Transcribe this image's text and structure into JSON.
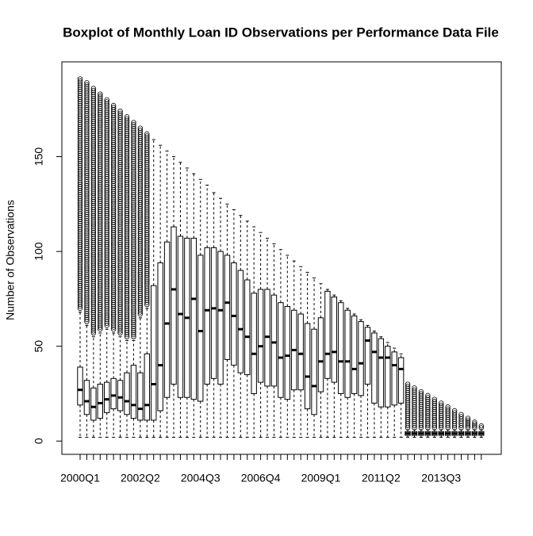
{
  "chart_data": {
    "type": "boxplot",
    "title": "Boxplot of Monthly Loan ID Observations per Performance Data File",
    "y_label": "Number of Observations",
    "categories": [
      "2000Q1",
      null,
      null,
      null,
      null,
      null,
      null,
      null,
      null,
      "2002Q2",
      null,
      null,
      null,
      null,
      null,
      null,
      null,
      null,
      "2004Q3",
      null,
      null,
      null,
      null,
      null,
      null,
      null,
      null,
      "2006Q4",
      null,
      null,
      null,
      null,
      null,
      null,
      null,
      null,
      "2009Q1",
      null,
      null,
      null,
      null,
      null,
      null,
      null,
      null,
      "2011Q2",
      null,
      null,
      null,
      null,
      null,
      null,
      null,
      null,
      "2013Q3",
      null,
      null,
      null,
      null,
      null,
      null
    ],
    "whisker_low": [
      2,
      2,
      2,
      2,
      2,
      2,
      2,
      2,
      2,
      2,
      2,
      2,
      2,
      2,
      2,
      2,
      2,
      2,
      2,
      2,
      2,
      2,
      2,
      2,
      2,
      2,
      2,
      2,
      2,
      2,
      2,
      2,
      2,
      2,
      2,
      2,
      2,
      2,
      2,
      2,
      2,
      2,
      2,
      2,
      2,
      2,
      2,
      2,
      2,
      2,
      2,
      2,
      2,
      2,
      2,
      2,
      2,
      2,
      2,
      2,
      2
    ],
    "q1": [
      19,
      14,
      11,
      12,
      15,
      17,
      16,
      14,
      12,
      11,
      11,
      11,
      16,
      23,
      30,
      23,
      23,
      22,
      21,
      30,
      33,
      30,
      43,
      40,
      36,
      35,
      25,
      31,
      29,
      29,
      23,
      22,
      27,
      27,
      17,
      14,
      26,
      33,
      31,
      25,
      23,
      25,
      24,
      30,
      20,
      18,
      18,
      19,
      20,
      3,
      3,
      3,
      3,
      3,
      3,
      3,
      3,
      3,
      3,
      3,
      3
    ],
    "median": [
      27,
      21,
      18,
      20,
      22,
      24,
      23,
      21,
      19,
      17,
      19,
      30,
      40,
      62,
      80,
      67,
      65,
      75,
      58,
      69,
      70,
      69,
      73,
      66,
      59,
      55,
      46,
      50,
      55,
      52,
      44,
      45,
      48,
      46,
      34,
      29,
      42,
      46,
      47,
      42,
      42,
      38,
      41,
      53,
      47,
      44,
      44,
      40,
      38,
      4,
      4,
      4,
      4,
      4,
      4,
      4,
      4,
      4,
      4,
      4,
      4
    ],
    "q3": [
      39,
      32,
      28,
      30,
      31,
      33,
      32,
      36,
      40,
      36,
      46,
      82,
      94,
      105,
      113,
      108,
      107,
      107,
      98,
      102,
      102,
      100,
      98,
      94,
      90,
      85,
      78,
      80,
      80,
      77,
      73,
      71,
      69,
      67,
      62,
      59,
      65,
      79,
      76,
      73,
      69,
      66,
      63,
      60,
      57,
      54,
      50,
      47,
      44,
      5,
      5,
      5,
      5,
      5,
      5,
      5,
      5,
      5,
      5,
      5,
      5
    ],
    "whisker_high": [
      68,
      61,
      55,
      57,
      59,
      57,
      55,
      53,
      53,
      65,
      70,
      159,
      156,
      153,
      150,
      147,
      144,
      141,
      138,
      135,
      131,
      128,
      125,
      122,
      119,
      116,
      113,
      110,
      107,
      104,
      101,
      98,
      95,
      92,
      89,
      86,
      83,
      80,
      77,
      74,
      70,
      67,
      64,
      61,
      58,
      55,
      52,
      49,
      46,
      6,
      6,
      6,
      6,
      6,
      6,
      6,
      6,
      6,
      6,
      6,
      6
    ],
    "outlier_min": [
      70,
      63,
      57,
      59,
      61,
      59,
      57,
      55,
      55,
      67,
      72,
      null,
      null,
      null,
      null,
      null,
      null,
      null,
      null,
      null,
      null,
      null,
      null,
      null,
      null,
      null,
      null,
      null,
      null,
      null,
      null,
      null,
      null,
      null,
      null,
      null,
      null,
      null,
      null,
      null,
      null,
      null,
      null,
      null,
      null,
      null,
      null,
      null,
      null,
      7,
      7,
      7,
      7,
      7,
      7,
      7,
      7,
      7,
      7,
      7,
      7
    ],
    "outlier_max": [
      191,
      189,
      186,
      183,
      180,
      177,
      174,
      171,
      168,
      165,
      162,
      null,
      null,
      null,
      null,
      null,
      null,
      null,
      null,
      null,
      null,
      null,
      null,
      null,
      null,
      null,
      null,
      null,
      null,
      null,
      null,
      null,
      null,
      null,
      null,
      null,
      null,
      null,
      null,
      null,
      null,
      null,
      null,
      null,
      null,
      null,
      null,
      null,
      null,
      30,
      28,
      26,
      24,
      22,
      20,
      18,
      16,
      14,
      12,
      10,
      8
    ],
    "ylim": [
      -7,
      200
    ],
    "yticks": [
      0,
      50,
      100,
      150
    ]
  }
}
